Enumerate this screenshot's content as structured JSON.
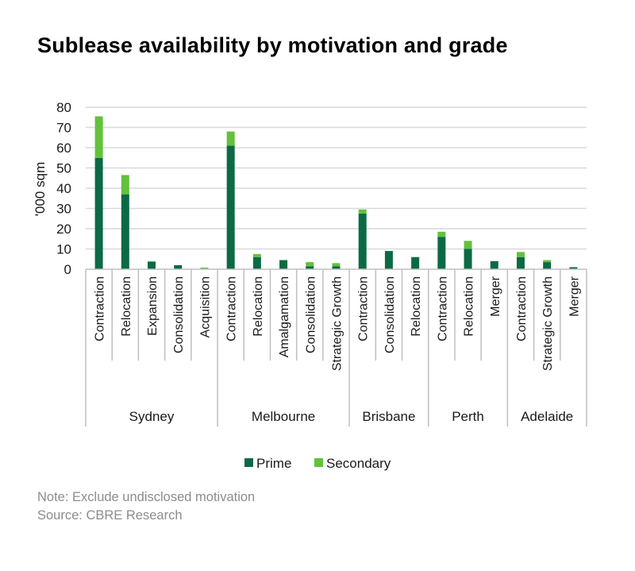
{
  "title": "Sublease availability by motivation and grade",
  "notes": {
    "note": "Note: Exclude undisclosed motivation",
    "source": "Source: CBRE Research"
  },
  "colors": {
    "prime": "#0b6a45",
    "secondary": "#63c13c",
    "grid": "#d9d9d9",
    "axis": "#bfbfbf",
    "text": "#1a1a1a"
  },
  "chart_data": {
    "type": "bar",
    "stacked": true,
    "ylabel": "'000 sqm",
    "ylim": [
      0,
      80
    ],
    "yticks": [
      0,
      10,
      20,
      30,
      40,
      50,
      60,
      70,
      80
    ],
    "grid": true,
    "legend_position": "bottom",
    "groups": [
      {
        "name": "Sydney",
        "categories": [
          "Contraction",
          "Relocation",
          "Expansion",
          "Consolidation",
          "Acquisition"
        ]
      },
      {
        "name": "Melbourne",
        "categories": [
          "Contraction",
          "Relocation",
          "Amalgamation",
          "Consolidation",
          "Strategic Growth"
        ]
      },
      {
        "name": "Brisbane",
        "categories": [
          "Contraction",
          "Consolidation",
          "Relocation"
        ]
      },
      {
        "name": "Perth",
        "categories": [
          "Contraction",
          "Relocation",
          "Merger"
        ]
      },
      {
        "name": "Adelaide",
        "categories": [
          "Contraction",
          "Strategic Growth",
          "Merger"
        ]
      }
    ],
    "series": [
      {
        "name": "Prime",
        "values": [
          55,
          37,
          3.8,
          2,
          0.3,
          61,
          6,
          4.5,
          1.5,
          1.5,
          27.5,
          9,
          6,
          16,
          10,
          4,
          6,
          3.5,
          1
        ]
      },
      {
        "name": "Secondary",
        "values": [
          20.5,
          9.5,
          0,
          0,
          0.5,
          7,
          1.5,
          0,
          2,
          1.5,
          2,
          0,
          0,
          2.5,
          4,
          0,
          2.5,
          1,
          0
        ]
      }
    ]
  }
}
